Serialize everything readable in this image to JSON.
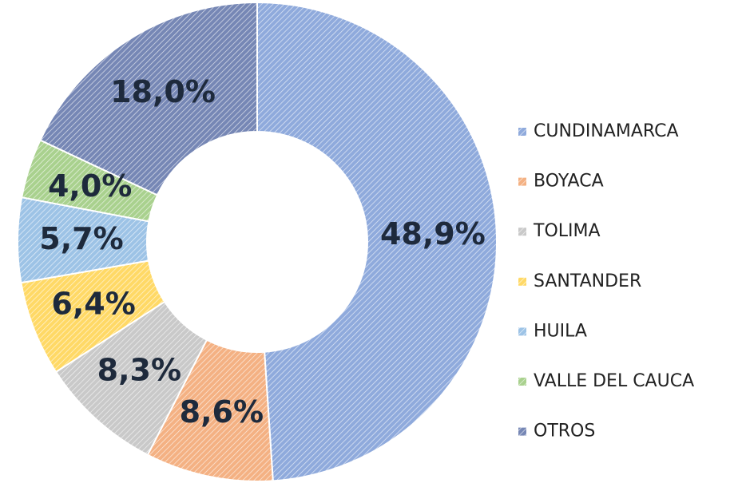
{
  "chart_data": {
    "type": "donut",
    "categories": [
      "CUNDINAMARCA",
      "BOYACA",
      "TOLIMA",
      "SANTANDER",
      "HUILA",
      "VALLE DEL CAUCA",
      "OTROS"
    ],
    "values": [
      48.9,
      8.6,
      8.3,
      6.4,
      5.7,
      4.0,
      18.0
    ],
    "value_labels": [
      "48,9%",
      "8,6%",
      "8,3%",
      "6,4%",
      "5,7%",
      "4,0%",
      "18,0%"
    ],
    "colors": [
      "#8faadc",
      "#f4b183",
      "#c9c9c9",
      "#ffd966",
      "#9dc3e6",
      "#a9d18e",
      "#7687b5"
    ],
    "legend": "right"
  }
}
